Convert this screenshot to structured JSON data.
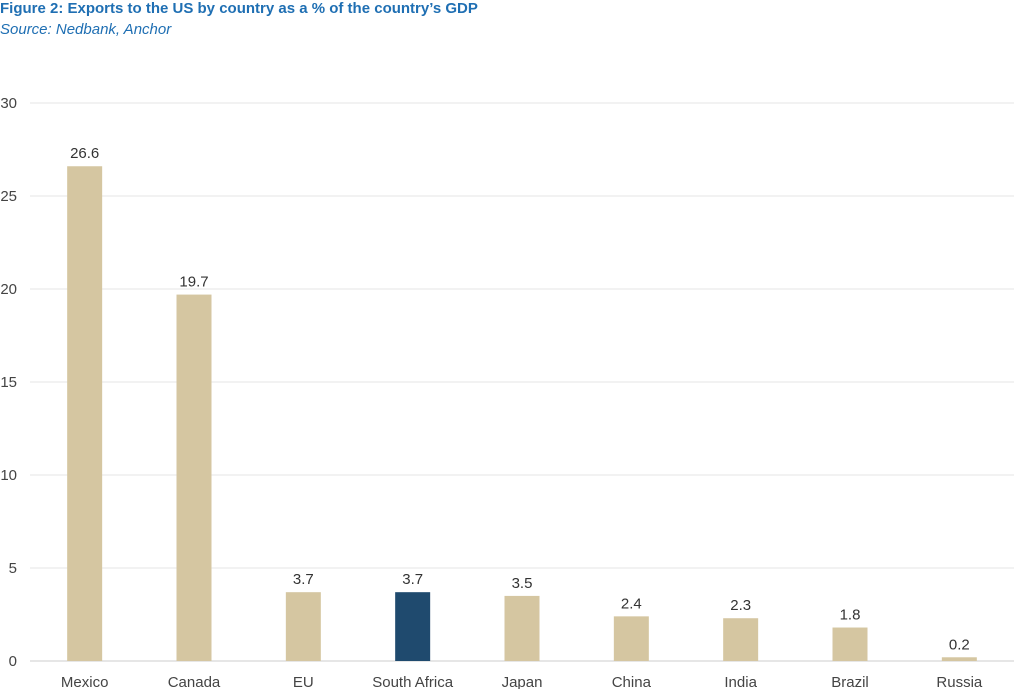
{
  "header": {
    "title": "Figure 2: Exports to the US by country as a % of the country’s GDP",
    "source": "Source: Nedbank, Anchor"
  },
  "colors": {
    "default_bar": "#d5c6a1",
    "highlight_bar": "#1f4a6e",
    "gridline": "#e6e6e6",
    "axis": "#cccccc"
  },
  "chart_data": {
    "type": "bar",
    "title": "Figure 2: Exports to the US by country as a % of the country’s GDP",
    "subtitle": "Source: Nedbank, Anchor",
    "xlabel": "",
    "ylabel": "",
    "categories": [
      "Mexico",
      "Canada",
      "EU",
      "South Africa",
      "Japan",
      "China",
      "India",
      "Brazil",
      "Russia"
    ],
    "values": [
      26.6,
      19.7,
      3.7,
      3.7,
      3.5,
      2.4,
      2.3,
      1.8,
      0.2
    ],
    "value_labels": [
      "26.6",
      "19.7",
      "3.7",
      "3.7",
      "3.5",
      "2.4",
      "2.3",
      "1.8",
      "0.2"
    ],
    "highlight_category": "South Africa",
    "ylim": [
      0,
      30
    ],
    "yticks": [
      0,
      5,
      10,
      15,
      20,
      25,
      30
    ],
    "grid": true,
    "legend": "none"
  }
}
